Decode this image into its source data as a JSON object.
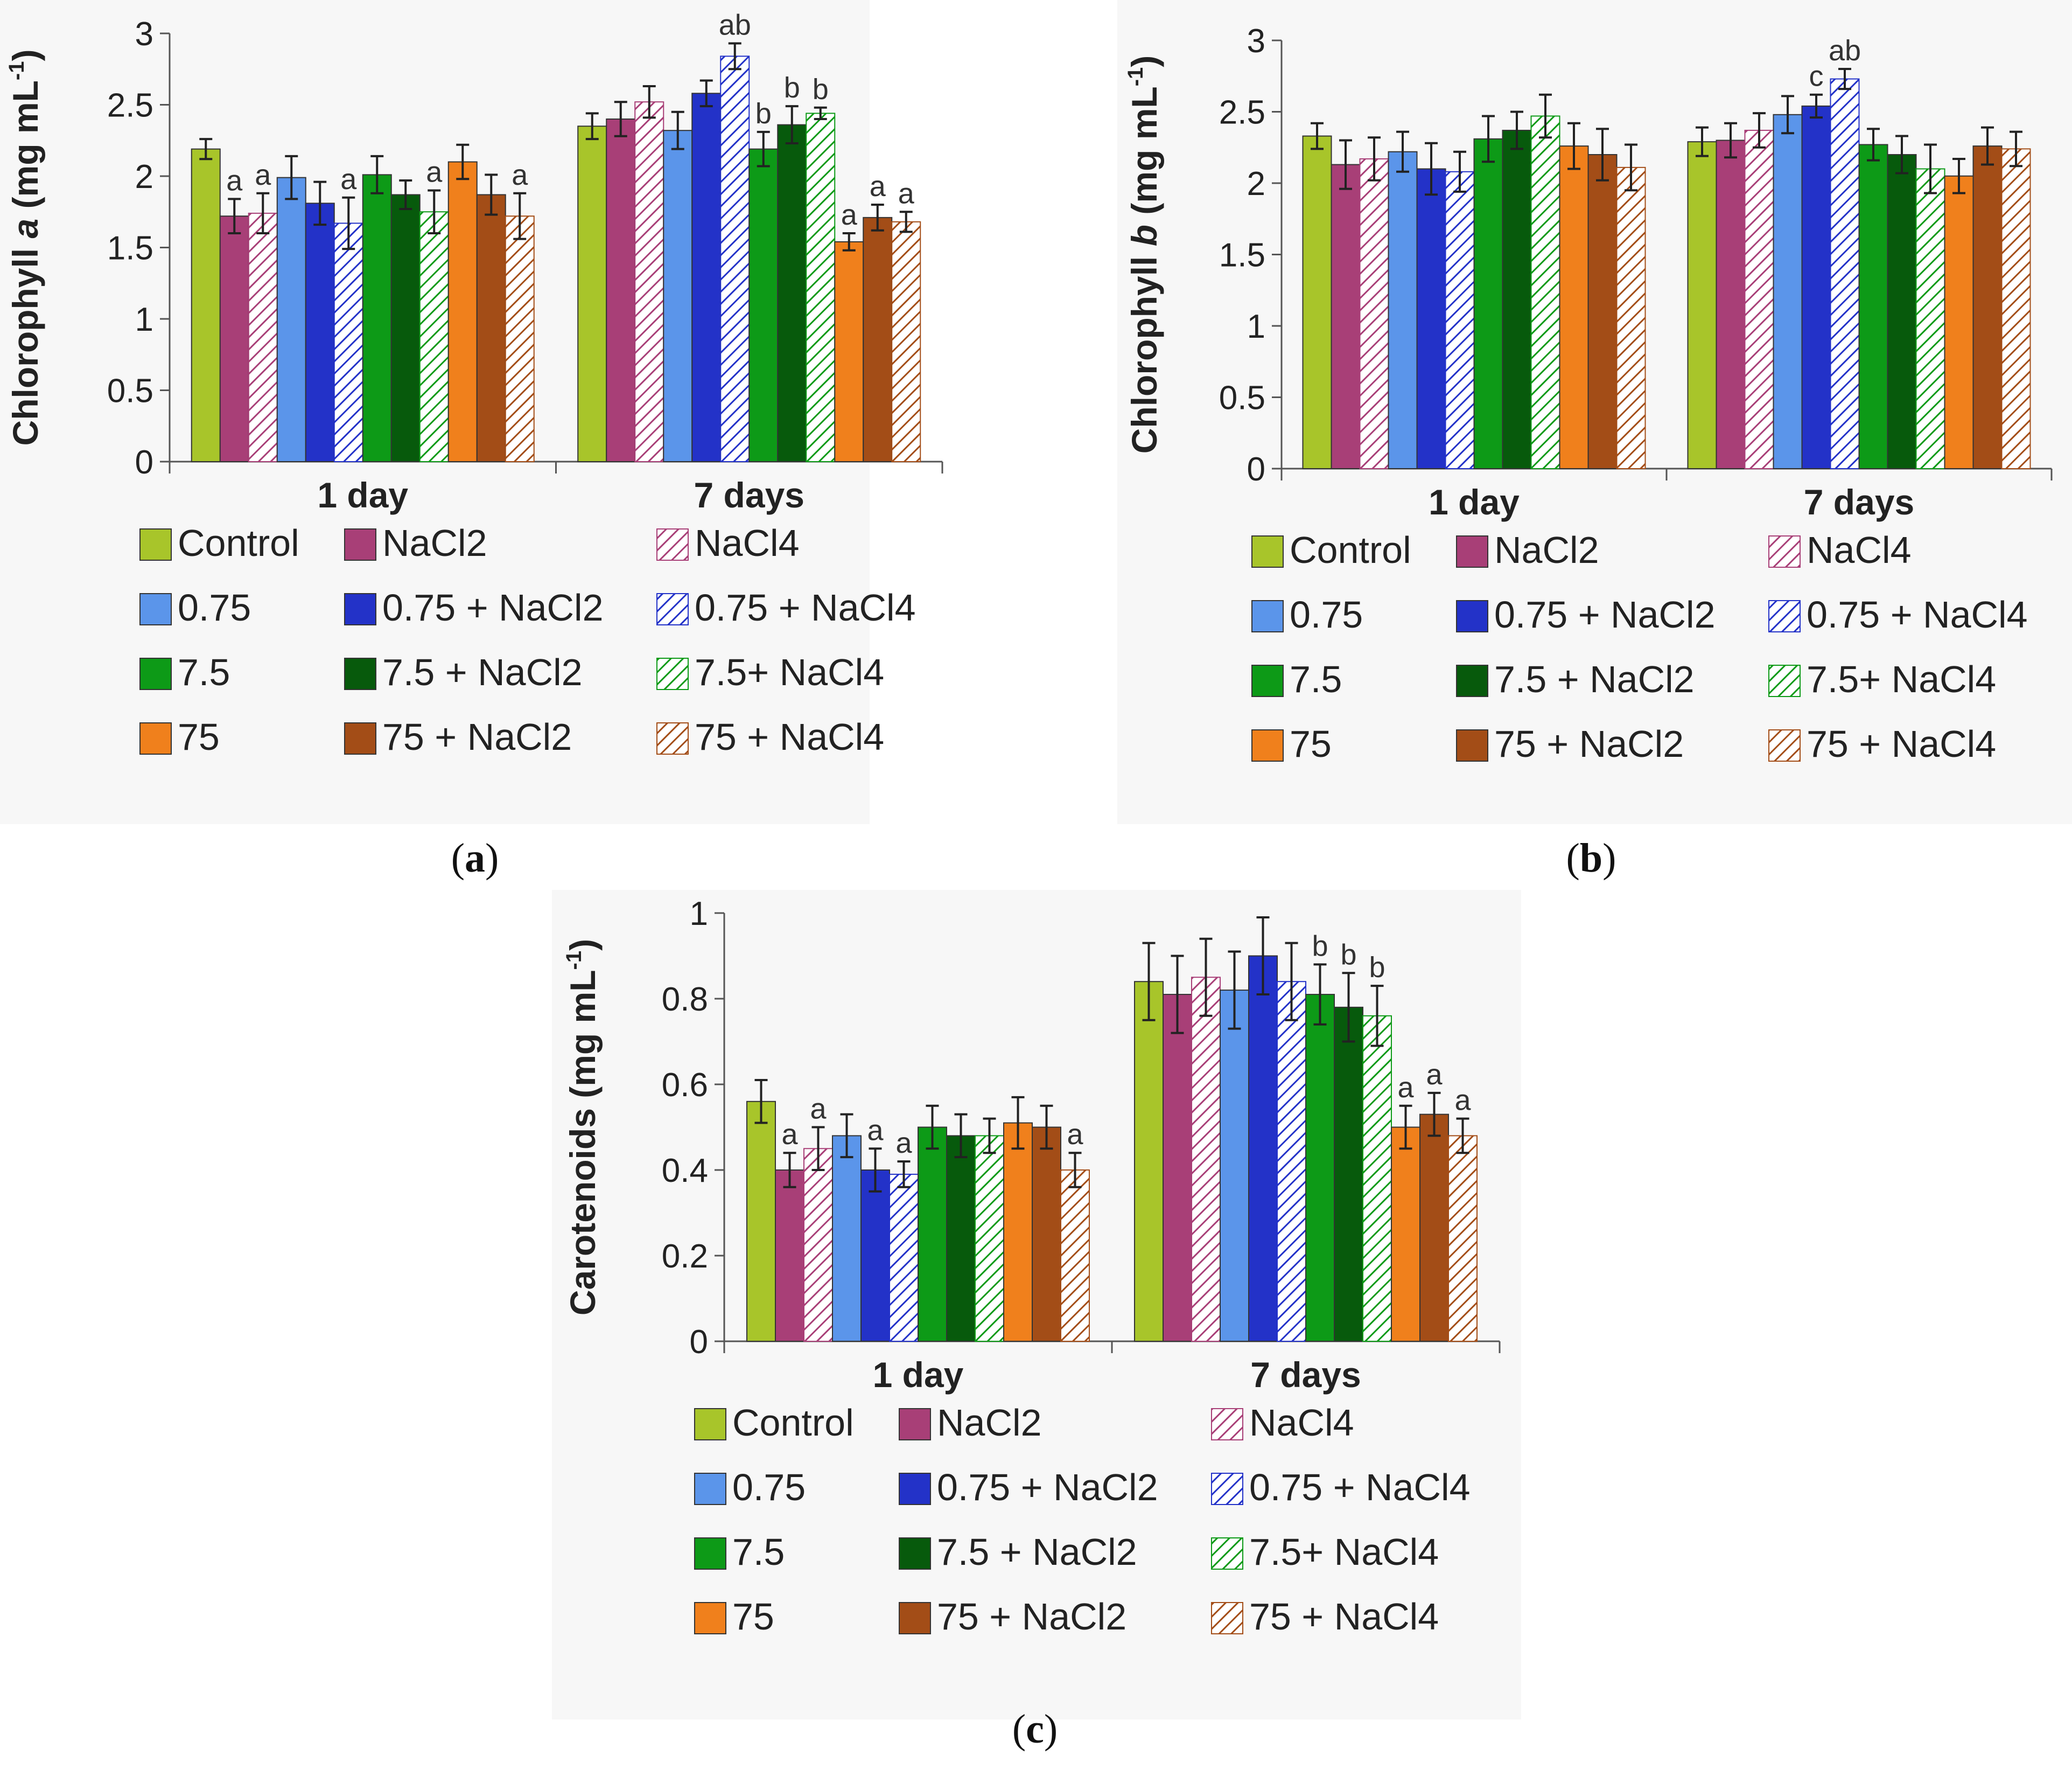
{
  "series_legend": [
    {
      "name": "Control",
      "color": "#a8c52a",
      "hatched": false
    },
    {
      "name": "NaCl2",
      "color": "#a83f77",
      "hatched": false
    },
    {
      "name": "NaCl4",
      "color": "#a83f77",
      "hatched": true
    },
    {
      "name": "0.75",
      "color": "#5b95ea",
      "hatched": false
    },
    {
      "name": "0.75 + NaCl2",
      "color": "#2332c8",
      "hatched": false
    },
    {
      "name": "0.75 + NaCl4",
      "color": "#2332c8",
      "hatched": true
    },
    {
      "name": "7.5",
      "color": "#0d9a17",
      "hatched": false
    },
    {
      "name": "7.5 + NaCl2",
      "color": "#075a0c",
      "hatched": false
    },
    {
      "name": "7.5+ NaCl4",
      "color": "#0d9a17",
      "hatched": true
    },
    {
      "name": "75",
      "color": "#f0801c",
      "hatched": false
    },
    {
      "name": "75 + NaCl2",
      "color": "#a34d17",
      "hatched": false
    },
    {
      "name": "75 + NaCl4",
      "color": "#a34d17",
      "hatched": true
    }
  ],
  "chart_data": [
    {
      "panel": "(a)",
      "caption_letter": "a",
      "type": "bar",
      "ylabel_pre": "Chlorophyll ",
      "ylabel_italic": "a",
      "ylabel_unit": " (mg mL",
      "ylabel_sup": "-1",
      "ylabel_close": ")",
      "ylim": [
        0,
        3
      ],
      "yticks": [
        "0",
        "0.5",
        "1",
        "1.5",
        "2",
        "2.5",
        "3"
      ],
      "categories": [
        "1 day",
        "7 days"
      ],
      "values": [
        [
          2.19,
          1.72,
          1.74,
          1.99,
          1.81,
          1.67,
          2.01,
          1.87,
          1.75,
          2.1,
          1.87,
          1.72
        ],
        [
          2.35,
          2.4,
          2.52,
          2.32,
          2.58,
          2.84,
          2.19,
          2.36,
          2.44,
          1.54,
          1.71,
          1.68
        ]
      ],
      "errors": [
        [
          0.07,
          0.12,
          0.14,
          0.15,
          0.15,
          0.18,
          0.13,
          0.1,
          0.15,
          0.12,
          0.14,
          0.16
        ],
        [
          0.09,
          0.12,
          0.11,
          0.13,
          0.09,
          0.09,
          0.12,
          0.13,
          0.04,
          0.06,
          0.09,
          0.07
        ]
      ],
      "annotations": [
        [
          "",
          "a",
          "a",
          "",
          "",
          "a",
          "",
          "",
          "a",
          "",
          "",
          "a"
        ],
        [
          "",
          "",
          "",
          "",
          "",
          "ab",
          "b",
          "b",
          "b",
          "a",
          "a",
          "a"
        ]
      ]
    },
    {
      "panel": "(b)",
      "caption_letter": "b",
      "type": "bar",
      "ylabel_pre": "Chlorophyll ",
      "ylabel_italic": "b",
      "ylabel_unit": " (mg mL",
      "ylabel_sup": "-1",
      "ylabel_close": ")",
      "ylim": [
        0,
        3
      ],
      "yticks": [
        "0",
        "0.5",
        "1",
        "1.5",
        "2",
        "2.5",
        "3"
      ],
      "categories": [
        "1 day",
        "7 days"
      ],
      "values": [
        [
          2.33,
          2.13,
          2.17,
          2.22,
          2.1,
          2.08,
          2.31,
          2.37,
          2.47,
          2.26,
          2.2,
          2.11
        ],
        [
          2.29,
          2.3,
          2.37,
          2.48,
          2.54,
          2.73,
          2.27,
          2.2,
          2.1,
          2.05,
          2.26,
          2.24
        ]
      ],
      "errors": [
        [
          0.09,
          0.17,
          0.15,
          0.14,
          0.18,
          0.14,
          0.16,
          0.13,
          0.15,
          0.16,
          0.18,
          0.16
        ],
        [
          0.1,
          0.12,
          0.12,
          0.13,
          0.08,
          0.07,
          0.11,
          0.13,
          0.17,
          0.12,
          0.13,
          0.12
        ]
      ],
      "annotations": [
        [
          "",
          "",
          "",
          "",
          "",
          "",
          "",
          "",
          "",
          "",
          "",
          ""
        ],
        [
          "",
          "",
          "",
          "",
          "c",
          "ab",
          "",
          "",
          "",
          "",
          "",
          ""
        ]
      ]
    },
    {
      "panel": "(c)",
      "caption_letter": "c",
      "type": "bar",
      "ylabel_pre": "Carotenoids",
      "ylabel_italic": "",
      "ylabel_unit": " (mg mL",
      "ylabel_sup": "-1",
      "ylabel_close": ")",
      "ylim": [
        0,
        1
      ],
      "yticks": [
        "0",
        "0.2",
        "0.4",
        "0.6",
        "0.8",
        "1"
      ],
      "categories": [
        "1 day",
        "7 days"
      ],
      "values": [
        [
          0.56,
          0.4,
          0.45,
          0.48,
          0.4,
          0.39,
          0.5,
          0.48,
          0.48,
          0.51,
          0.5,
          0.4
        ],
        [
          0.84,
          0.81,
          0.85,
          0.82,
          0.9,
          0.84,
          0.81,
          0.78,
          0.76,
          0.5,
          0.53,
          0.48
        ]
      ],
      "errors": [
        [
          0.05,
          0.04,
          0.05,
          0.05,
          0.05,
          0.03,
          0.05,
          0.05,
          0.04,
          0.06,
          0.05,
          0.04
        ],
        [
          0.09,
          0.09,
          0.09,
          0.09,
          0.09,
          0.09,
          0.07,
          0.08,
          0.07,
          0.05,
          0.05,
          0.04
        ]
      ],
      "annotations": [
        [
          "",
          "a",
          "a",
          "",
          "a",
          "a",
          "",
          "",
          "",
          "",
          "",
          "a"
        ],
        [
          "",
          "",
          "",
          "",
          "",
          "",
          "b",
          "b",
          "b",
          "a",
          "a",
          "a"
        ]
      ]
    }
  ]
}
